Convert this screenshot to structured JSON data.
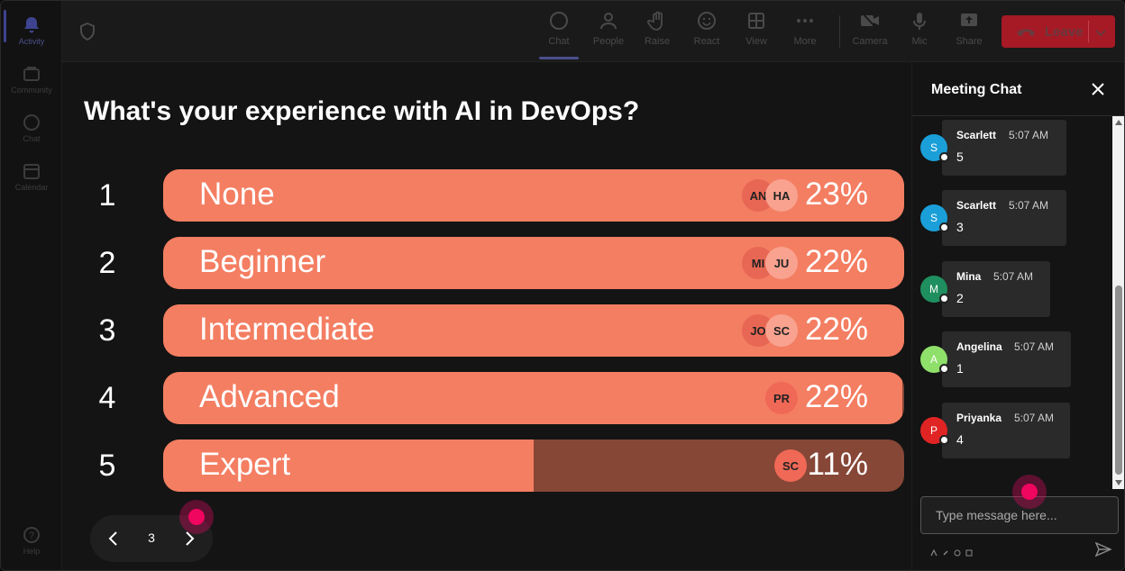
{
  "rail": {
    "items": [
      {
        "label": "Activity",
        "icon": "bell-icon"
      },
      {
        "label": "Community",
        "icon": "community-icon"
      },
      {
        "label": "Chat",
        "icon": "chat-icon"
      },
      {
        "label": "Calendar",
        "icon": "calendar-icon"
      }
    ],
    "help": "Help"
  },
  "topbar": {
    "chat": "Chat",
    "people": "People",
    "raise": "Raise",
    "react": "React",
    "view": "View",
    "more": "More",
    "camera": "Camera",
    "mic": "Mic",
    "share": "Share",
    "leave": "Leave"
  },
  "poll": {
    "title": "What's your experience with AI in DevOps?",
    "options": [
      {
        "num": "1",
        "label": "None",
        "pct": "23%",
        "fill": 1.0,
        "avatars": [
          "AN",
          "HA"
        ]
      },
      {
        "num": "2",
        "label": "Beginner",
        "pct": "22%",
        "fill": 1.0,
        "avatars": [
          "MI",
          "JU"
        ]
      },
      {
        "num": "3",
        "label": "Intermediate",
        "pct": "22%",
        "fill": 1.0,
        "avatars": [
          "JO",
          "SC"
        ]
      },
      {
        "num": "4",
        "label": "Advanced",
        "pct": "22%",
        "fill": 0.997,
        "avatars": [
          "PR"
        ]
      },
      {
        "num": "5",
        "label": "Expert",
        "pct": "11%",
        "fill": 0.5,
        "avatars": [
          "SC"
        ]
      }
    ],
    "page": "3",
    "colors": {
      "fill": "#f47e62",
      "track": "#864737"
    }
  },
  "chat": {
    "title": "Meeting Chat",
    "messages": [
      {
        "initial": "S",
        "name": "Scarlett",
        "time": "5:07 AM",
        "text": "5",
        "color": "#1a9fd8"
      },
      {
        "initial": "S",
        "name": "Scarlett",
        "time": "5:07 AM",
        "text": "3",
        "color": "#1a9fd8"
      },
      {
        "initial": "M",
        "name": "Mina",
        "time": "5:07 AM",
        "text": "2",
        "color": "#1f8f5f"
      },
      {
        "initial": "A",
        "name": "Angelina",
        "time": "5:07 AM",
        "text": "1",
        "color": "#8fe06a"
      },
      {
        "initial": "P",
        "name": "Priyanka",
        "time": "5:07 AM",
        "text": "4",
        "color": "#e02424"
      }
    ],
    "placeholder": "Type message here..."
  }
}
